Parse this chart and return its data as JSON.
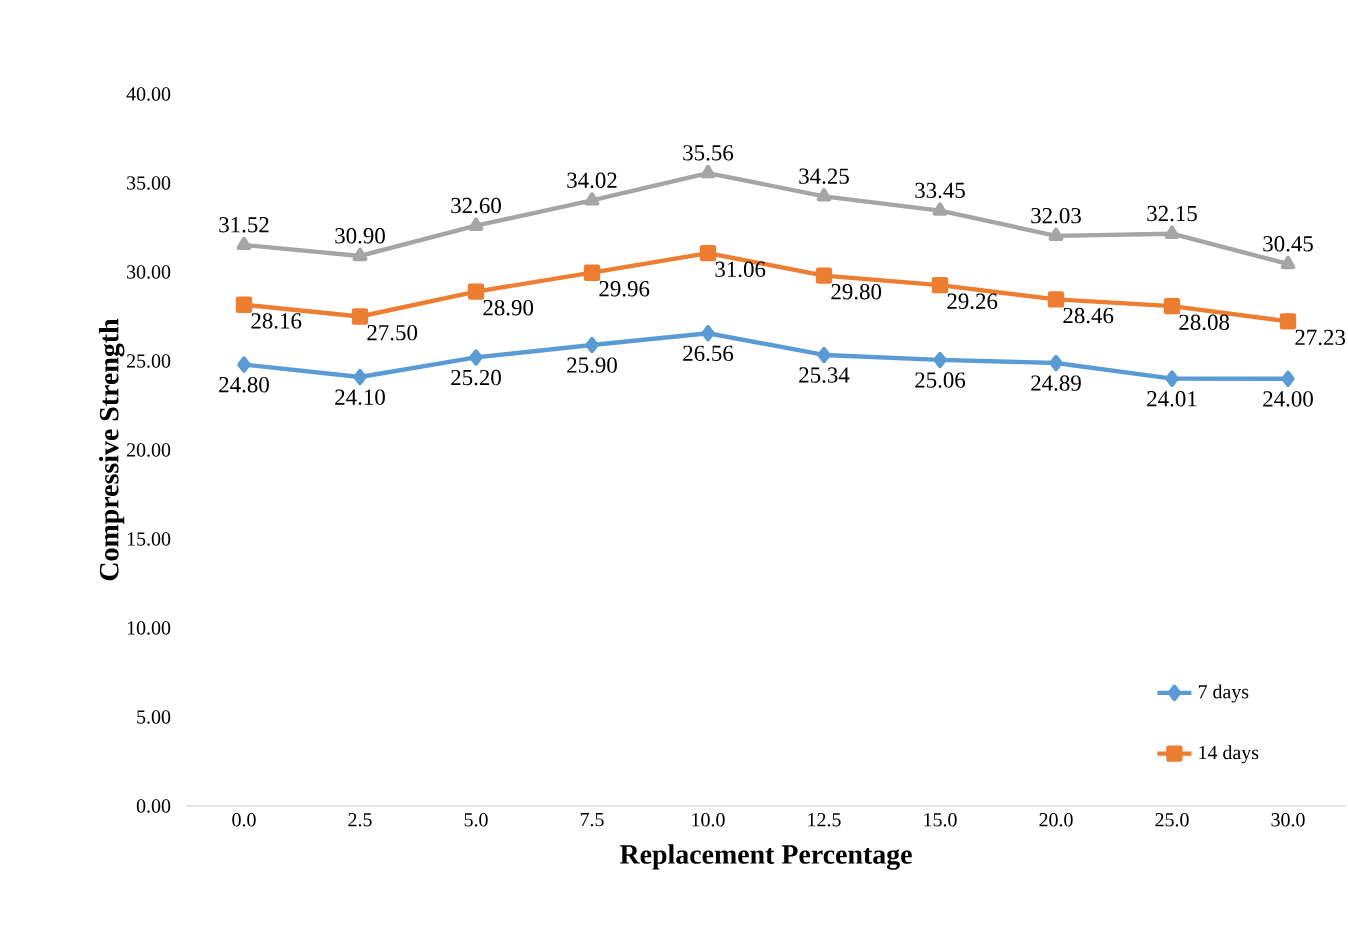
{
  "chart_data": {
    "type": "line",
    "xlabel": "Replacement Percentage",
    "ylabel": "Compressive Strength",
    "categories": [
      "0.0",
      "2.5",
      "5.0",
      "7.5",
      "10.0",
      "12.5",
      "15.0",
      "20.0",
      "25.0",
      "30.0"
    ],
    "ylim": [
      0,
      40
    ],
    "yticks": [
      {
        "value": 0,
        "label": "0.00"
      },
      {
        "value": 5,
        "label": "5.00"
      },
      {
        "value": 10,
        "label": "10.00"
      },
      {
        "value": 15,
        "label": "15.00"
      },
      {
        "value": 20,
        "label": "20.00"
      },
      {
        "value": 25,
        "label": "25.00"
      },
      {
        "value": 30,
        "label": "30.00"
      },
      {
        "value": 35,
        "label": "35.00"
      },
      {
        "value": 40,
        "label": "40.00"
      }
    ],
    "legend": "bottom right",
    "grid": false,
    "series": [
      {
        "name": "7 days",
        "color": "#5b9bd5",
        "marker": "diamond",
        "values": [
          24.8,
          24.1,
          25.2,
          25.9,
          26.56,
          25.34,
          25.06,
          24.89,
          24.01,
          24.0
        ],
        "value_labels": [
          "24.80",
          "24.10",
          "25.20",
          "25.90",
          "26.56",
          "25.34",
          "25.06",
          "24.89",
          "24.01",
          "24.00"
        ]
      },
      {
        "name": "14 days",
        "color": "#ed7d31",
        "marker": "square",
        "values": [
          28.16,
          27.5,
          28.9,
          29.96,
          31.06,
          29.8,
          29.26,
          28.46,
          28.08,
          27.23
        ],
        "value_labels": [
          "28.16",
          "27.50",
          "28.90",
          "29.96",
          "31.06",
          "29.80",
          "29.26",
          "28.46",
          "28.08",
          "27.23"
        ]
      },
      {
        "color": "#a5a5a5",
        "marker": "triangle",
        "values": [
          31.52,
          30.9,
          32.6,
          34.02,
          35.56,
          34.25,
          33.45,
          32.03,
          32.15,
          30.45
        ],
        "value_labels": [
          "31.52",
          "30.90",
          "32.60",
          "34.02",
          "35.56",
          "34.25",
          "33.45",
          "32.03",
          "32.15",
          "30.45"
        ]
      }
    ]
  }
}
